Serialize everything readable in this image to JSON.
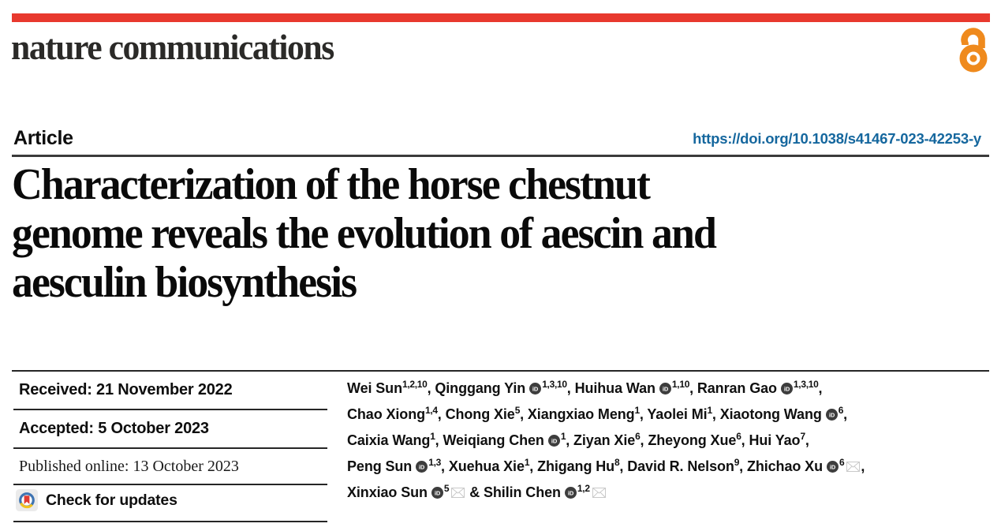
{
  "brand": {
    "journal": "nature communications",
    "topbar_color": "#e8392e",
    "open_access_color": "#ef8a1d"
  },
  "article_header": {
    "type_label": "Article",
    "doi_url": "https://doi.org/10.1038/s41467-023-42253-y",
    "doi_color": "#15679e"
  },
  "title_lines": [
    "Characterization of the horse chestnut",
    "genome reveals the evolution of aescin and",
    "aesculin biosynthesis"
  ],
  "history": {
    "received": "Received: 21 November 2022",
    "accepted": "Accepted: 5 October 2023",
    "published_online": "Published online: 13 October 2023",
    "check_for_updates_label": "Check for updates"
  },
  "authors": {
    "lines": [
      [
        {
          "name": "Wei Sun",
          "orcid": false,
          "sup": "1,2,10",
          "email": false,
          "tail": ", "
        },
        {
          "name": "Qinggang Yin",
          "orcid": true,
          "sup": "1,3,10",
          "email": false,
          "tail": ", "
        },
        {
          "name": "Huihua Wan",
          "orcid": true,
          "sup": "1,10",
          "email": false,
          "tail": ", "
        },
        {
          "name": "Ranran Gao",
          "orcid": true,
          "sup": "1,3,10",
          "email": false,
          "tail": ","
        }
      ],
      [
        {
          "name": "Chao Xiong",
          "orcid": false,
          "sup": "1,4",
          "email": false,
          "tail": ", "
        },
        {
          "name": "Chong Xie",
          "orcid": false,
          "sup": "5",
          "email": false,
          "tail": ", "
        },
        {
          "name": "Xiangxiao Meng",
          "orcid": false,
          "sup": "1",
          "email": false,
          "tail": ", "
        },
        {
          "name": "Yaolei Mi",
          "orcid": false,
          "sup": "1",
          "email": false,
          "tail": ", "
        },
        {
          "name": "Xiaotong Wang",
          "orcid": true,
          "sup": "6",
          "email": false,
          "tail": ","
        }
      ],
      [
        {
          "name": "Caixia Wang",
          "orcid": false,
          "sup": "1",
          "email": false,
          "tail": ", "
        },
        {
          "name": "Weiqiang Chen",
          "orcid": true,
          "sup": "1",
          "email": false,
          "tail": ", "
        },
        {
          "name": "Ziyan Xie",
          "orcid": false,
          "sup": "6",
          "email": false,
          "tail": ", "
        },
        {
          "name": "Zheyong Xue",
          "orcid": false,
          "sup": "6",
          "email": false,
          "tail": ", "
        },
        {
          "name": "Hui Yao",
          "orcid": false,
          "sup": "7",
          "email": false,
          "tail": ","
        }
      ],
      [
        {
          "name": "Peng Sun",
          "orcid": true,
          "sup": "1,3",
          "email": false,
          "tail": ", "
        },
        {
          "name": "Xuehua Xie",
          "orcid": false,
          "sup": "1",
          "email": false,
          "tail": ", "
        },
        {
          "name": "Zhigang Hu",
          "orcid": false,
          "sup": "8",
          "email": false,
          "tail": ", "
        },
        {
          "name": "David R. Nelson",
          "orcid": false,
          "sup": "9",
          "email": false,
          "tail": ", "
        },
        {
          "name": "Zhichao Xu",
          "orcid": true,
          "sup": "6",
          "email": true,
          "tail": ","
        }
      ],
      [
        {
          "name": "Xinxiao Sun",
          "orcid": true,
          "sup": "5",
          "email": true,
          "tail": ""
        },
        {
          "prefix": " & ",
          "name": "Shilin Chen",
          "orcid": true,
          "sup": "1,2",
          "email": true,
          "tail": ""
        }
      ]
    ]
  }
}
